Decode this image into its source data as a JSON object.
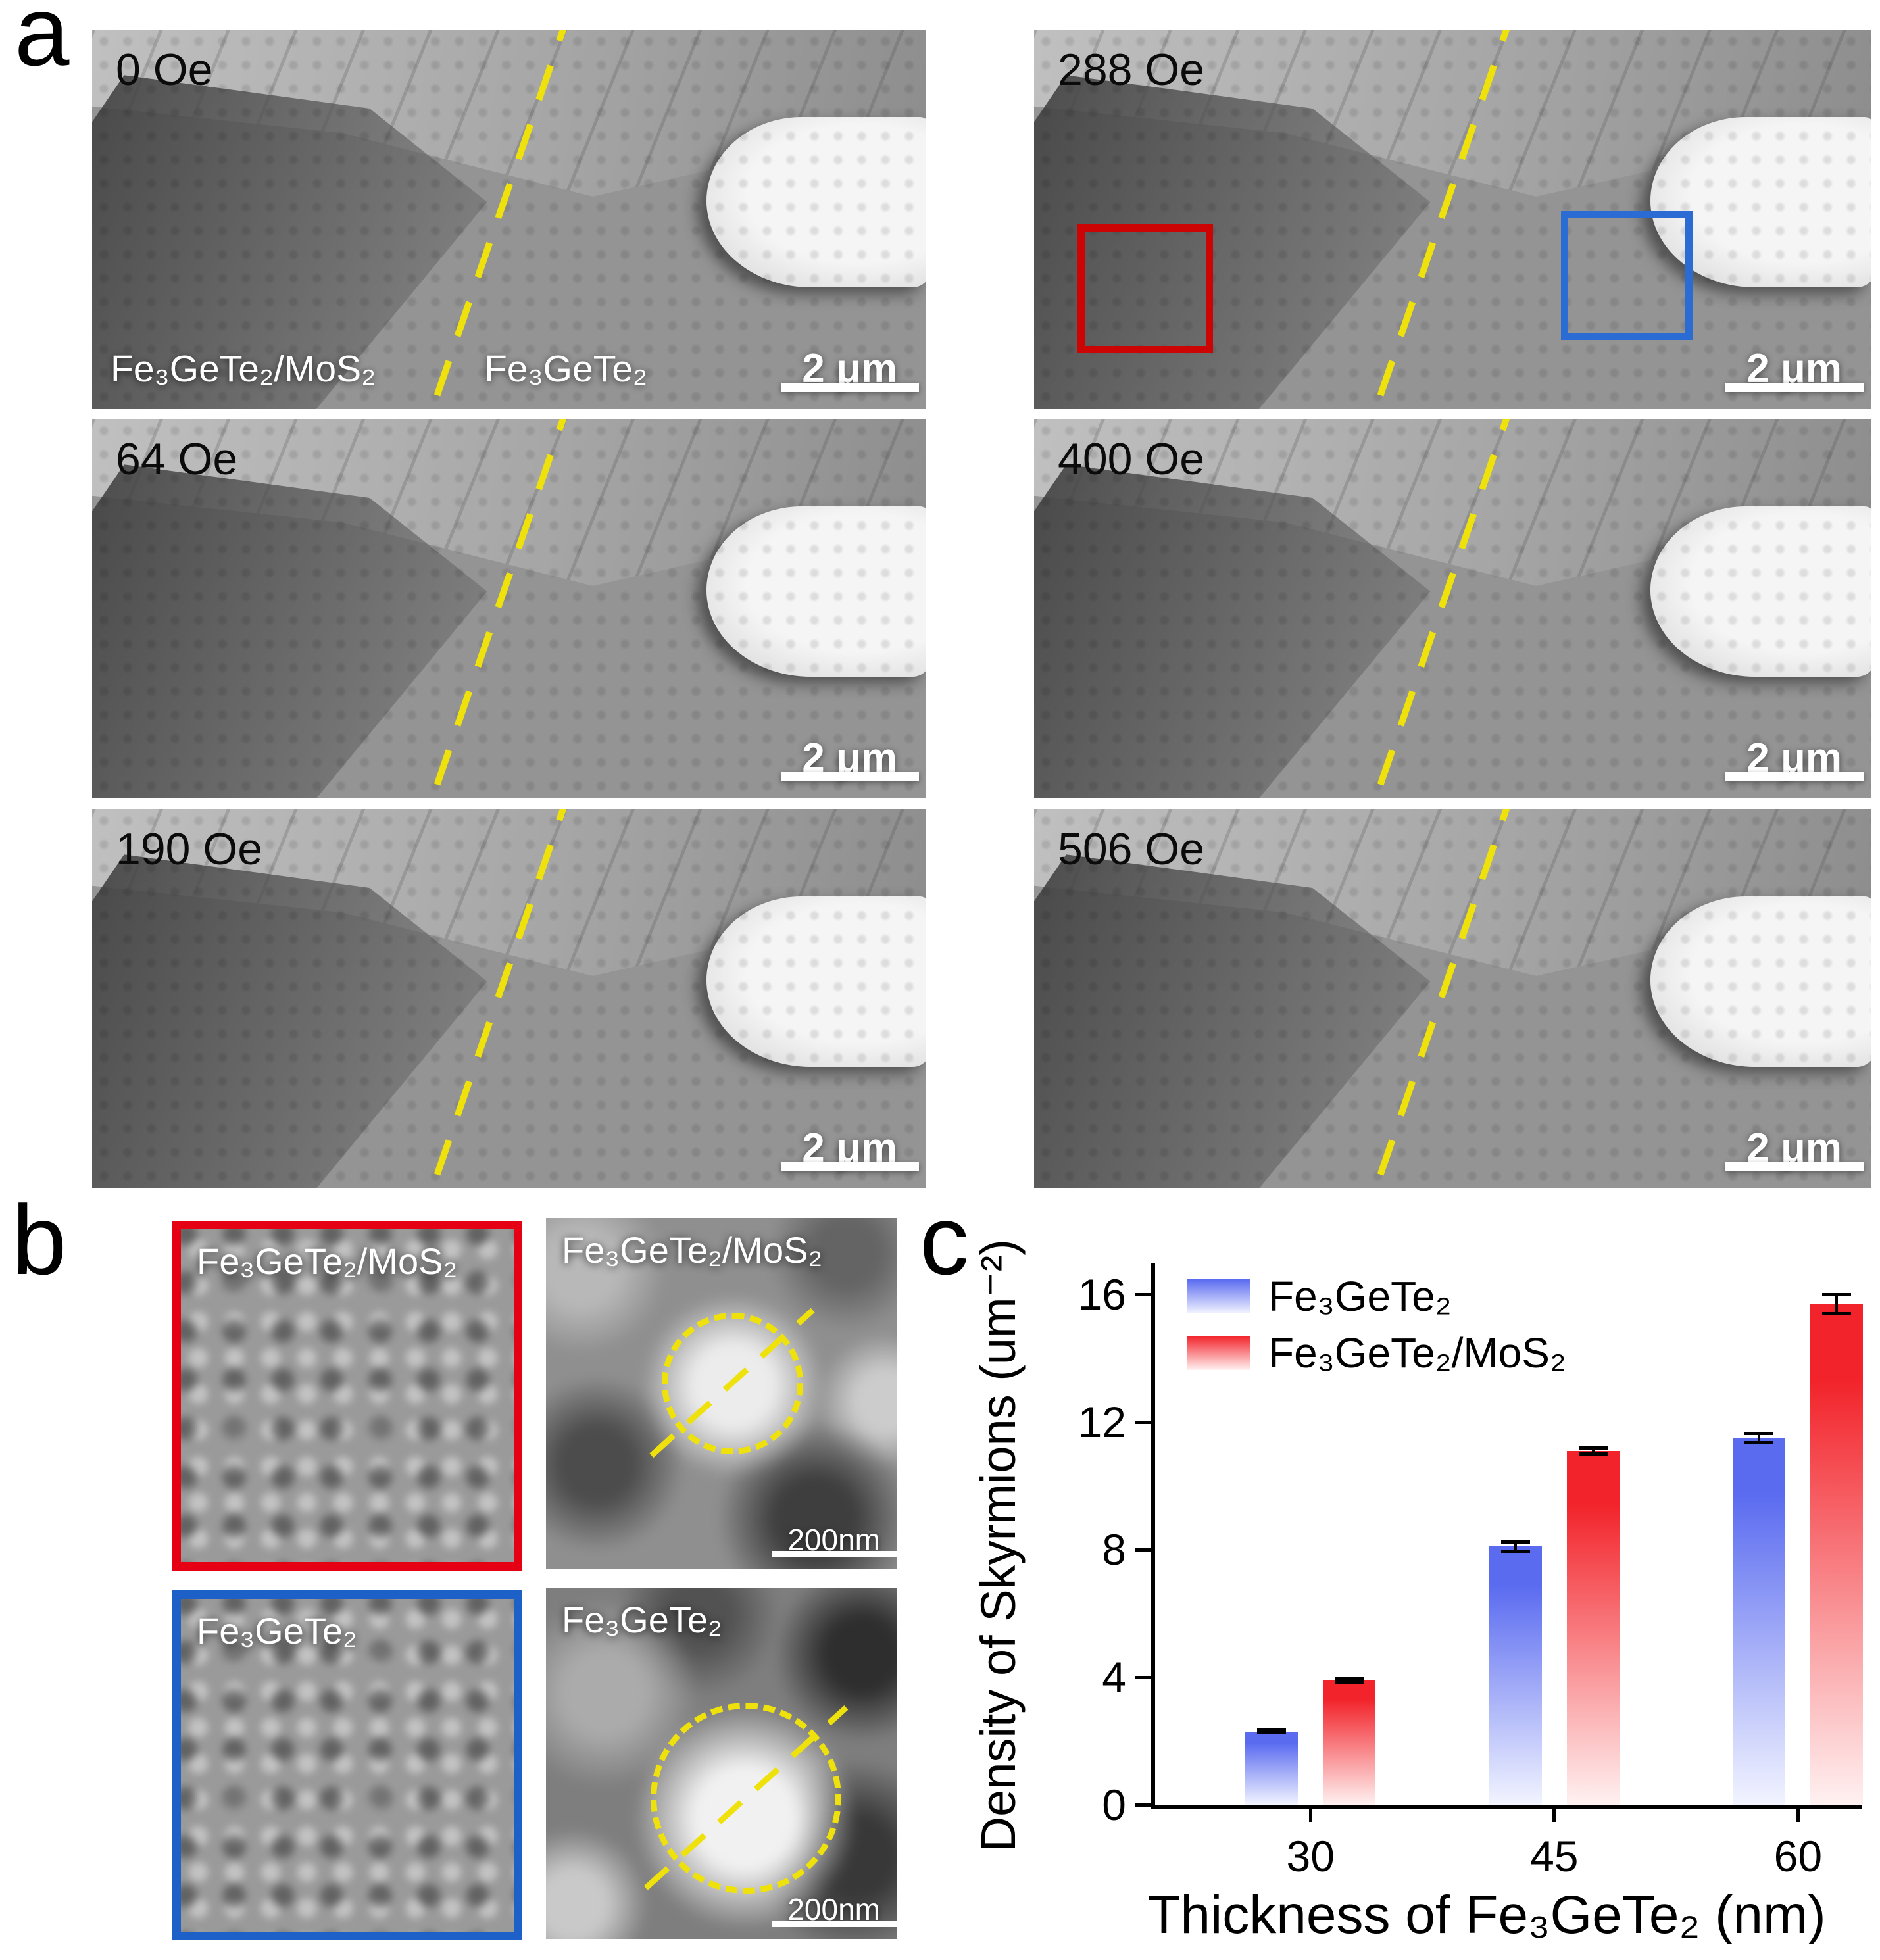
{
  "figure": {
    "panel_a": {
      "label": "a",
      "micrographs": [
        {
          "field": "0 Oe",
          "scale_label": "2 μm",
          "region_labels": {
            "left": "Fe₃GeTe₂/MoS₂",
            "right": "Fe₃GeTe₂"
          }
        },
        {
          "field": "288 Oe",
          "scale_label": "2 μm"
        },
        {
          "field": "64 Oe",
          "scale_label": "2 μm"
        },
        {
          "field": "400 Oe",
          "scale_label": "2 μm"
        },
        {
          "field": "190 Oe",
          "scale_label": "2 μm"
        },
        {
          "field": "506 Oe",
          "scale_label": "2 μm"
        }
      ],
      "roi_colors": {
        "red": "#cd0404",
        "blue": "#2a6cd4"
      },
      "boundary_line_color": "#efe10c"
    },
    "panel_b": {
      "label": "b",
      "crops": [
        {
          "title": "Fe₃GeTe₂/MoS₂",
          "border_color": "#e60013"
        },
        {
          "title": "Fe₃GeTe₂",
          "border_color": "#1c60c8"
        }
      ],
      "closeups": [
        {
          "title": "Fe₃GeTe₂/MoS₂",
          "scale_label": "200nm"
        },
        {
          "title": "Fe₃GeTe₂",
          "scale_label": "200nm"
        }
      ]
    },
    "panel_c": {
      "label": "c"
    }
  },
  "chart_data": {
    "type": "bar",
    "categories": [
      "30",
      "45",
      "60"
    ],
    "series": [
      {
        "name": "Fe₃GeTe₂",
        "color": "#5a6bf0",
        "color_light": "#f2f4ff",
        "values": [
          2.3,
          8.1,
          11.5
        ],
        "errors": [
          0.1,
          0.2,
          0.2
        ]
      },
      {
        "name": "Fe₃GeTe₂/MoS₂",
        "color": "#f2232a",
        "color_light": "#fff1f1",
        "values": [
          3.9,
          11.1,
          15.7
        ],
        "errors": [
          0.1,
          0.15,
          0.35
        ]
      }
    ],
    "xlabel": "Thickness of Fe₃GeTe₂ (nm)",
    "ylabel": "Density of Skyrmions (um⁻²)",
    "ylim": [
      0,
      17
    ],
    "yticks": [
      0,
      4,
      8,
      12,
      16
    ],
    "xticks": [
      "30",
      "45",
      "60"
    ],
    "legend_position": "top-left",
    "grid": false
  }
}
